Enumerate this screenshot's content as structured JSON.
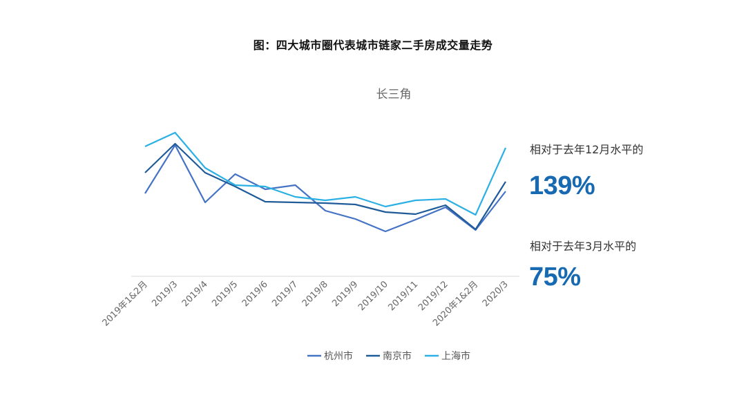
{
  "title": "图：四大城市圈代表城市链家二手房成交量走势",
  "stats": {
    "dec_label": "相对于去年12月水平的",
    "dec_value": "139%",
    "mar_label": "相对于去年3月水平的",
    "mar_value": "75%"
  },
  "colors": {
    "杭州市": "#4472c4",
    "南京市": "#1f5b98",
    "上海市": "#2ab0e4",
    "accent": "#1769b2"
  },
  "chart_data": {
    "type": "line",
    "title": "长三角",
    "categories": [
      "2019年1&2月",
      "2019/3",
      "2019/4",
      "2019/5",
      "2019/6",
      "2019/7",
      "2019/8",
      "2019/9",
      "2019/10",
      "2019/11",
      "2019/12",
      "2020年1&2月",
      "2020/3"
    ],
    "series": [
      {
        "name": "杭州市",
        "values": [
          120,
          190,
          107,
          148,
          126,
          132,
          95,
          83,
          65,
          82,
          100,
          67,
          123
        ]
      },
      {
        "name": "南京市",
        "values": [
          150,
          192,
          150,
          130,
          108,
          107,
          106,
          104,
          93,
          90,
          103,
          68,
          137
        ]
      },
      {
        "name": "上海市",
        "values": [
          188,
          208,
          157,
          132,
          130,
          115,
          110,
          115,
          101,
          110,
          112,
          89,
          186
        ]
      }
    ],
    "ylim": [
      0,
      250
    ],
    "grid": false,
    "legend_position": "bottom"
  }
}
